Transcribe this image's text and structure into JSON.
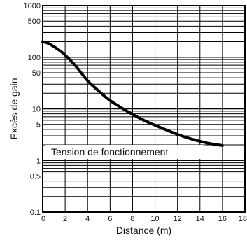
{
  "chart_data": {
    "type": "line",
    "xlabel": "Distance (m)",
    "ylabel": "Excès de gain",
    "x_scale": "linear",
    "y_scale": "log",
    "xlim": [
      0,
      18
    ],
    "ylim": [
      0.1,
      1000
    ],
    "x_ticks": [
      "0",
      "2",
      "4",
      "6",
      "8",
      "10",
      "12",
      "14",
      "16",
      "18"
    ],
    "y_ticks": [
      {
        "value": 1000,
        "label": "1000"
      },
      {
        "value": 500,
        "label": "500"
      },
      {
        "value": 100,
        "label": "100"
      },
      {
        "value": 50,
        "label": "50"
      },
      {
        "value": 10,
        "label": "10"
      },
      {
        "value": 5,
        "label": "5"
      },
      {
        "value": 1,
        "label": "1"
      },
      {
        "value": 0.5,
        "label": "0.5"
      },
      {
        "value": 0.1,
        "label": "0.1"
      }
    ],
    "grid": true,
    "annotation": "Tension de fonctionnement",
    "series": [
      {
        "x": [
          0,
          0.5,
          1,
          1.5,
          2,
          3,
          4,
          5,
          6,
          7,
          8,
          9,
          10,
          11,
          12,
          13,
          14,
          15,
          16
        ],
        "y": [
          200,
          185,
          160,
          135,
          110,
          65,
          35,
          22,
          14.5,
          10.5,
          7.8,
          6,
          4.8,
          3.9,
          3.2,
          2.7,
          2.35,
          2.1,
          1.95
        ]
      }
    ]
  }
}
